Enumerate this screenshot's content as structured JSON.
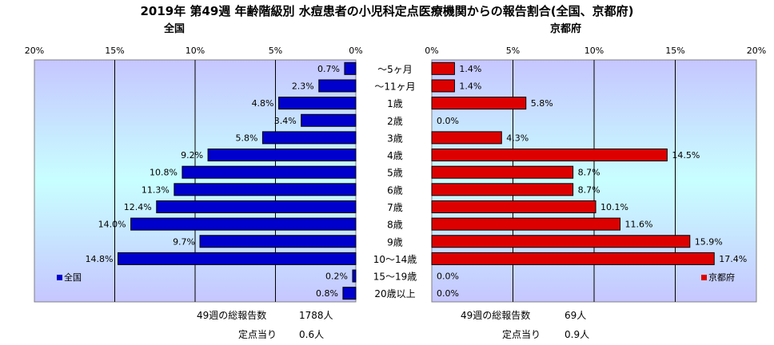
{
  "title": "2019年 第49週 年齢階級別 水痘患者の小児科定点医療機関からの報告割合(全国、京都府)",
  "chart_data": [
    {
      "type": "bar",
      "orientation": "horizontal",
      "direction": "right-to-left",
      "title": "全国",
      "categories": [
        "～5ヶ月",
        "～11ヶ月",
        "1歳",
        "2歳",
        "3歳",
        "4歳",
        "5歳",
        "6歳",
        "7歳",
        "8歳",
        "9歳",
        "10～14歳",
        "15～19歳",
        "20歳以上"
      ],
      "series": [
        {
          "name": "全国",
          "values": [
            0.7,
            2.3,
            4.8,
            3.4,
            5.8,
            9.2,
            10.8,
            11.3,
            12.4,
            14.0,
            9.7,
            14.8,
            0.2,
            0.8
          ],
          "labels": [
            "0.7%",
            "2.3%",
            "4.8%",
            "3.4%",
            "5.8%",
            "9.2%",
            "10.8%",
            "11.3%",
            "12.4%",
            "14.0%",
            "9.7%",
            "14.8%",
            "0.2%",
            "0.8%"
          ],
          "color": "#0000cc"
        }
      ],
      "xlim": [
        0,
        20
      ],
      "ticks": [
        "20%",
        "15%",
        "10%",
        "5%",
        "0%"
      ],
      "legend": "lower-left",
      "grid": true
    },
    {
      "type": "bar",
      "orientation": "horizontal",
      "direction": "left-to-right",
      "title": "京都府",
      "categories": [
        "～5ヶ月",
        "～11ヶ月",
        "1歳",
        "2歳",
        "3歳",
        "4歳",
        "5歳",
        "6歳",
        "7歳",
        "8歳",
        "9歳",
        "10～14歳",
        "15～19歳",
        "20歳以上"
      ],
      "series": [
        {
          "name": "京都府",
          "values": [
            1.4,
            1.4,
            5.8,
            0.0,
            4.3,
            14.5,
            8.7,
            8.7,
            10.1,
            11.6,
            15.9,
            17.4,
            0.0,
            0.0
          ],
          "labels": [
            "1.4%",
            "1.4%",
            "5.8%",
            "0.0%",
            "4.3%",
            "14.5%",
            "8.7%",
            "8.7%",
            "10.1%",
            "11.6%",
            "15.9%",
            "17.4%",
            "0.0%",
            "0.0%"
          ],
          "color": "#dd0000"
        }
      ],
      "xlim": [
        0,
        20
      ],
      "ticks": [
        "0%",
        "5%",
        "10%",
        "15%",
        "20%"
      ],
      "legend": "lower-right",
      "grid": true
    }
  ],
  "footer": {
    "national": {
      "total_label": "49週の総報告数",
      "total_value": "1788人",
      "per_label": "定点当り",
      "per_value": "0.6人"
    },
    "kyoto": {
      "total_label": "49週の総報告数",
      "total_value": "69人",
      "per_label": "定点当り",
      "per_value": "0.9人"
    }
  },
  "colors": {
    "plot_bg_top": "#c6c6ff",
    "plot_bg_bottom": "#c8ffff",
    "national_bar": "#0000cc",
    "kyoto_bar": "#dd0000"
  }
}
